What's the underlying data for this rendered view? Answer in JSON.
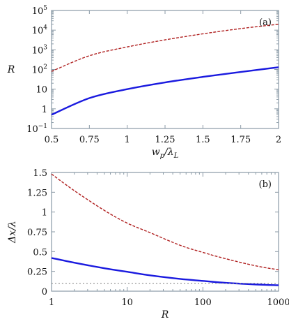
{
  "colors": {
    "solid_series": "#1a1adf",
    "dashed_series": "#b02020",
    "reference_line": "#8c8c8c",
    "frame": "#8a9aa6"
  },
  "chart_data": [
    {
      "type": "line",
      "panel_label": "(a)",
      "xlabel": "w_p/λ_L",
      "xlabel_main": "w",
      "xlabel_sub1": "p",
      "xlabel_mid": "/λ",
      "xlabel_sub2": "L",
      "ylabel": "R",
      "xlim": [
        0.5,
        2
      ],
      "ylim": [
        0.1,
        100000
      ],
      "yscale": "log",
      "grid": false,
      "xticks": [
        0.5,
        0.75,
        1,
        1.25,
        1.5,
        1.75,
        2
      ],
      "xtick_labels": [
        "0.5",
        "0.75",
        "1",
        "1.25",
        "1.5",
        "1.75",
        "2"
      ],
      "yticks": [
        0.1,
        1,
        10,
        100,
        1000,
        10000,
        100000
      ],
      "ytick_labels": [
        {
          "base": "10",
          "exp": "−1"
        },
        {
          "base": "1",
          "exp": ""
        },
        {
          "base": "10",
          "exp": ""
        },
        {
          "base": "10",
          "exp": "2"
        },
        {
          "base": "10",
          "exp": "3"
        },
        {
          "base": "10",
          "exp": "4"
        },
        {
          "base": "10",
          "exp": "5"
        }
      ],
      "series": [
        {
          "style": "solid",
          "x": [
            0.5,
            0.75,
            1.0,
            1.25,
            1.5,
            1.75,
            2.0
          ],
          "y": [
            0.5,
            3.5,
            10,
            22,
            42,
            75,
            130
          ]
        },
        {
          "style": "dashed",
          "x": [
            0.5,
            0.75,
            1.0,
            1.25,
            1.5,
            1.75,
            2.0
          ],
          "y": [
            80,
            500,
            1400,
            3200,
            6500,
            12000,
            20000
          ]
        }
      ]
    },
    {
      "type": "line",
      "panel_label": "(b)",
      "xlabel": "R",
      "ylabel": "Δx/λ",
      "xlim": [
        1,
        1000
      ],
      "ylim": [
        0,
        1.5
      ],
      "xscale": "log",
      "grid": false,
      "xticks": [
        1,
        10,
        100,
        1000
      ],
      "xtick_labels": [
        "1",
        "10",
        "100",
        "1000"
      ],
      "yticks": [
        0,
        0.25,
        0.5,
        0.75,
        1,
        1.25,
        1.5
      ],
      "ytick_labels": [
        "0",
        "0.25",
        "0.5",
        "0.75",
        "1",
        "1.25",
        "1.5"
      ],
      "series": [
        {
          "style": "solid",
          "x": [
            1,
            2,
            5,
            10,
            20,
            50,
            100,
            200,
            500,
            1000
          ],
          "y": [
            0.42,
            0.36,
            0.29,
            0.245,
            0.2,
            0.155,
            0.13,
            0.105,
            0.085,
            0.075
          ]
        },
        {
          "style": "dashed",
          "x": [
            1,
            2,
            5,
            10,
            20,
            50,
            100,
            200,
            500,
            1000
          ],
          "y": [
            1.48,
            1.27,
            1.02,
            0.86,
            0.74,
            0.58,
            0.49,
            0.41,
            0.32,
            0.27
          ]
        },
        {
          "style": "dotted",
          "x": [
            1,
            1000
          ],
          "y": [
            0.1,
            0.1
          ]
        }
      ]
    }
  ]
}
